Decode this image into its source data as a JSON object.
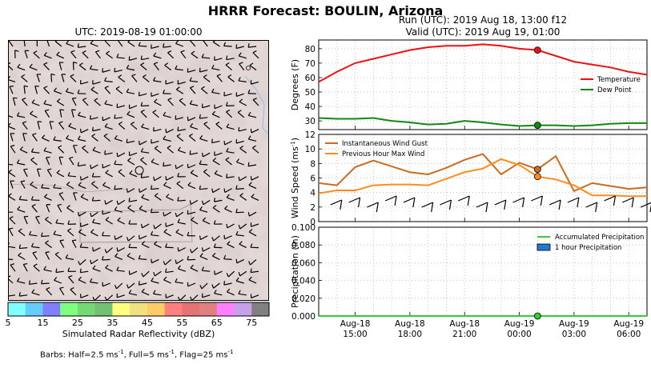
{
  "title": "HRRR Forecast: BOULIN, Arizona",
  "map": {
    "title": "UTC: 2019-08-19 01:00:00",
    "colorbar": {
      "label": "Simulated Radar Reflectivity (dBZ)",
      "ticks": [
        "5",
        "15",
        "25",
        "35",
        "45",
        "55",
        "65",
        "75"
      ],
      "colors": [
        "#80ffff",
        "#66ccff",
        "#7f7fff",
        "#7fff7f",
        "#73d973",
        "#73bf73",
        "#ffff7f",
        "#f0e080",
        "#ffcc66",
        "#ff7f7f",
        "#e67373",
        "#e08080",
        "#ff80ff",
        "#c8a0e8",
        "#808080"
      ]
    },
    "barbs_note": {
      "prefix": "Barbs: Half=2.5 ms",
      "exp1": "-1",
      "mid1": ", Full=5 ms",
      "exp2": "-1",
      "mid2": ", Flag=25 ms",
      "exp3": "-1"
    }
  },
  "header": {
    "run": "Run (UTC): 2019 Aug 18, 13:00 f12",
    "valid": "Valid (UTC): 2019 Aug 19, 01:00"
  },
  "chart_data": [
    {
      "type": "line",
      "ylabel": "Degrees (F)",
      "ylim": [
        24,
        86
      ],
      "yticks": [
        30,
        40,
        50,
        60,
        70,
        80
      ],
      "x": [
        13,
        14,
        15,
        16,
        17,
        18,
        19,
        20,
        21,
        22,
        23,
        24,
        25,
        26,
        27,
        28,
        29,
        30,
        31
      ],
      "series": [
        {
          "name": "Temperature",
          "color": "#ee1111",
          "values": [
            57,
            64,
            70,
            73,
            76,
            79,
            81,
            82,
            82,
            83,
            82,
            80,
            79,
            75,
            71,
            69,
            67,
            64,
            62
          ]
        },
        {
          "name": "Dew Point",
          "color": "#118811",
          "values": [
            32,
            31.5,
            31.5,
            32,
            30,
            29,
            27.5,
            28,
            30,
            29,
            27.5,
            26.5,
            27,
            27,
            26.5,
            27,
            28,
            28.5,
            28.5
          ]
        }
      ],
      "markers": [
        {
          "series": "Temperature",
          "x": 25,
          "y": 79
        },
        {
          "series": "Dew Point",
          "x": 25,
          "y": 27
        }
      ],
      "legend": "right",
      "grid": true
    },
    {
      "type": "line",
      "ylabel": "Wind Speed (ms",
      "ylabel_exp": "-1",
      "ylim": [
        0,
        12
      ],
      "yticks": [
        0,
        2,
        4,
        6,
        8,
        10,
        12
      ],
      "x": [
        13,
        14,
        15,
        16,
        17,
        18,
        19,
        20,
        21,
        22,
        23,
        24,
        25,
        26,
        27,
        28,
        29,
        30,
        31
      ],
      "series": [
        {
          "name": "Instantaneous Wind Gust",
          "color": "#cc6a20",
          "values": [
            5.3,
            5.0,
            7.5,
            8.4,
            7.6,
            6.8,
            6.5,
            7.4,
            8.5,
            9.3,
            6.5,
            8.1,
            7.2,
            9.0,
            4.2,
            5.3,
            4.9,
            4.5,
            4.7
          ]
        },
        {
          "name": "Previous Hour Max Wind",
          "color": "#ff8c1a",
          "values": [
            3.9,
            4.3,
            4.3,
            5.0,
            5.1,
            5.1,
            5.0,
            5.9,
            6.8,
            7.3,
            8.6,
            7.8,
            6.2,
            5.8,
            5.0,
            3.6,
            3.6,
            3.5,
            3.5
          ]
        }
      ],
      "markers": [
        {
          "series": "Instantaneous Wind Gust",
          "x": 25,
          "y": 7.2
        },
        {
          "series": "Previous Hour Max Wind",
          "x": 25,
          "y": 6.2
        }
      ],
      "legend": "top-left",
      "grid": true
    },
    {
      "type": "line",
      "ylabel": "Precipitation (in)",
      "ylim": [
        0,
        0.1
      ],
      "yticks": [
        "0.000",
        "0.020",
        "0.040",
        "0.060",
        "0.080",
        "0.100"
      ],
      "x": [
        13,
        14,
        15,
        16,
        17,
        18,
        19,
        20,
        21,
        22,
        23,
        24,
        25,
        26,
        27,
        28,
        29,
        30,
        31
      ],
      "series": [
        {
          "name": "Accumulated Precipitation",
          "color": "#33cc33",
          "values": [
            0,
            0,
            0,
            0,
            0,
            0,
            0,
            0,
            0,
            0,
            0,
            0,
            0,
            0,
            0,
            0,
            0,
            0,
            0
          ]
        },
        {
          "name": "1 hour Precipitation",
          "color": "#1f78d1",
          "type": "bar",
          "values": [
            0,
            0,
            0,
            0,
            0,
            0,
            0,
            0,
            0,
            0,
            0,
            0,
            0,
            0,
            0,
            0,
            0,
            0,
            0
          ]
        }
      ],
      "markers": [
        {
          "series": "Accumulated Precipitation",
          "x": 25,
          "y": 0
        }
      ],
      "legend": "top-right",
      "grid": true
    }
  ],
  "x_axis": {
    "xlim": [
      13,
      31
    ],
    "ticks": [
      {
        "x": 15,
        "line1": "Aug-18",
        "line2": "15:00"
      },
      {
        "x": 18,
        "line1": "Aug-18",
        "line2": "18:00"
      },
      {
        "x": 21,
        "line1": "Aug-18",
        "line2": "21:00"
      },
      {
        "x": 24,
        "line1": "Aug-19",
        "line2": "00:00"
      },
      {
        "x": 27,
        "line1": "Aug-19",
        "line2": "03:00"
      },
      {
        "x": 30,
        "line1": "Aug-19",
        "line2": "06:00"
      }
    ]
  }
}
